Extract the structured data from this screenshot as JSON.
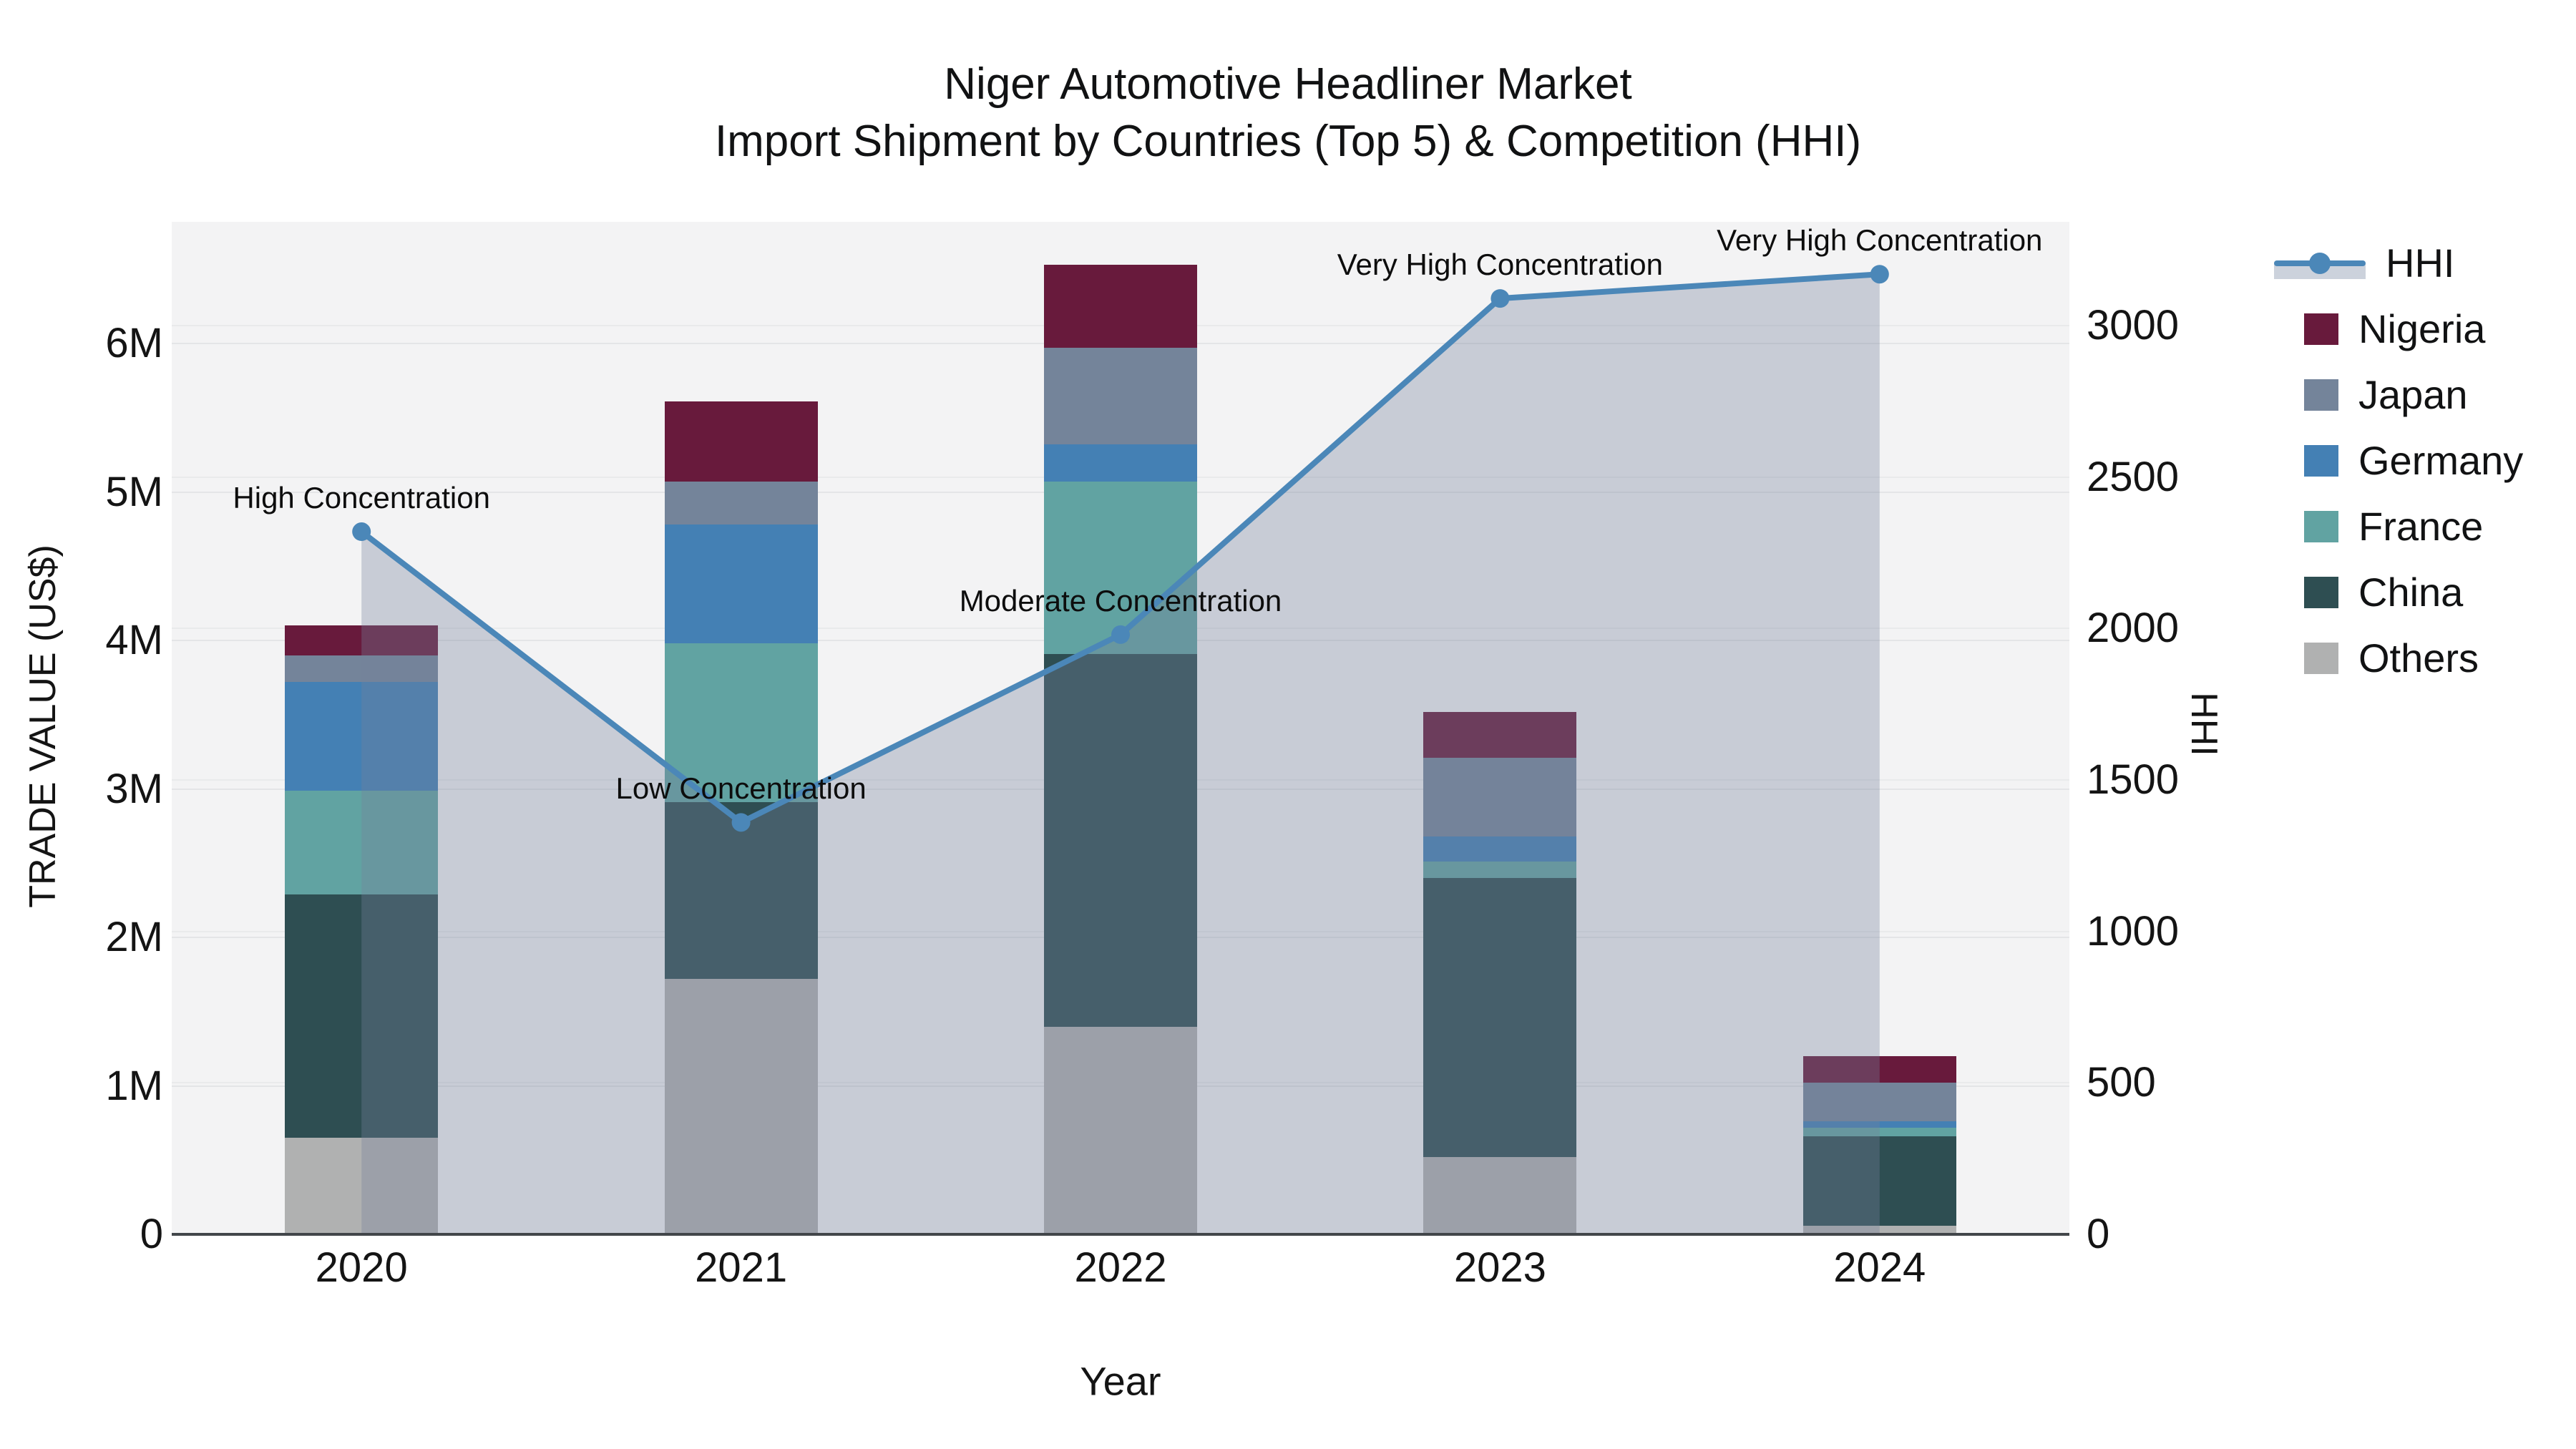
{
  "title": {
    "line1": "Niger Automotive Headliner Market",
    "line2": "Import Shipment by Countries (Top 5) & Competition (HHI)"
  },
  "axes": {
    "x": {
      "title": "Year",
      "tick_labels": [
        "2020",
        "2021",
        "2022",
        "2023",
        "2024"
      ]
    },
    "y_left": {
      "title": "TRADE VALUE (US$)",
      "tick_labels": [
        "0",
        "1M",
        "2M",
        "3M",
        "4M",
        "5M",
        "6M"
      ],
      "tick_values": [
        0,
        1,
        2,
        3,
        4,
        5,
        6
      ]
    },
    "y_right": {
      "title": "HHI",
      "tick_labels": [
        "0",
        "500",
        "1000",
        "1500",
        "2000",
        "2500",
        "3000"
      ],
      "tick_values": [
        0,
        500,
        1000,
        1500,
        2000,
        2500,
        3000
      ]
    }
  },
  "legend": {
    "entries": [
      {
        "label": "HHI",
        "type": "line",
        "color": "#4b87b8",
        "fill": "#ccd2dc"
      },
      {
        "label": "Nigeria",
        "type": "swatch",
        "color": "#681a3c"
      },
      {
        "label": "Japan",
        "type": "swatch",
        "color": "#74849a"
      },
      {
        "label": "Germany",
        "type": "swatch",
        "color": "#4480b4"
      },
      {
        "label": "France",
        "type": "swatch",
        "color": "#61a3a2"
      },
      {
        "label": "China",
        "type": "swatch",
        "color": "#2e4e52"
      },
      {
        "label": "Others",
        "type": "swatch",
        "color": "#b0b1b1"
      }
    ]
  },
  "chart_data": {
    "type": "combo_stacked_bar_line",
    "categories": [
      "2020",
      "2021",
      "2022",
      "2023",
      "2024"
    ],
    "bar_unit": "Trade value, millions US$",
    "series": [
      {
        "name": "Others",
        "color": "#b0b1b1",
        "values": [
          0.65,
          1.72,
          1.4,
          0.52,
          0.06
        ]
      },
      {
        "name": "China",
        "color": "#2e4e52",
        "values": [
          1.64,
          1.19,
          2.51,
          1.88,
          0.6
        ]
      },
      {
        "name": "France",
        "color": "#61a3a2",
        "values": [
          0.7,
          1.07,
          1.16,
          0.11,
          0.06
        ]
      },
      {
        "name": "Germany",
        "color": "#4480b4",
        "values": [
          0.73,
          0.8,
          0.25,
          0.17,
          0.04
        ]
      },
      {
        "name": "Japan",
        "color": "#74849a",
        "values": [
          0.18,
          0.29,
          0.65,
          0.53,
          0.26
        ]
      },
      {
        "name": "Nigeria",
        "color": "#681a3c",
        "values": [
          0.2,
          0.54,
          0.56,
          0.31,
          0.18
        ]
      }
    ],
    "line_series": {
      "name": "HHI",
      "axis": "right",
      "color": "#4b87b8",
      "area_fill": "rgba(118,129,156,0.34)",
      "values": [
        2320,
        1360,
        1980,
        3090,
        3170
      ]
    },
    "annotations": [
      {
        "category": "2020",
        "text": "High Concentration"
      },
      {
        "category": "2021",
        "text": "Low Concentration"
      },
      {
        "category": "2022",
        "text": "Moderate Concentration"
      },
      {
        "category": "2023",
        "text": "Very High Concentration"
      },
      {
        "category": "2024",
        "text": "Very High Concentration"
      }
    ],
    "y_left_range": [
      0,
      6.82
    ],
    "y_right_range": [
      0,
      3343
    ],
    "grid": true,
    "legend_position": "right"
  }
}
